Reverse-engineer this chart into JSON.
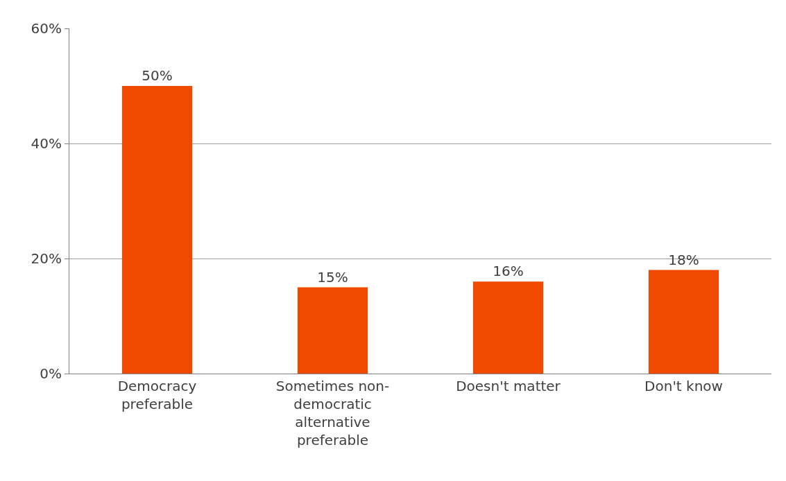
{
  "chart_data": {
    "type": "bar",
    "categories": [
      "Democracy preferable",
      "Sometimes non-democratic alternative preferable",
      "Doesn't matter",
      "Don't know"
    ],
    "values": [
      50,
      15,
      16,
      18
    ],
    "value_labels": [
      "50%",
      "15%",
      "16%",
      "18%"
    ],
    "color": "#f04a00",
    "ylim": [
      0,
      60
    ],
    "yticks": [
      {
        "value": 0,
        "label": "0%"
      },
      {
        "value": 20,
        "label": "20%"
      },
      {
        "value": 40,
        "label": "40%"
      },
      {
        "value": 60,
        "label": "60%"
      }
    ],
    "grid": "y",
    "legend": false
  }
}
